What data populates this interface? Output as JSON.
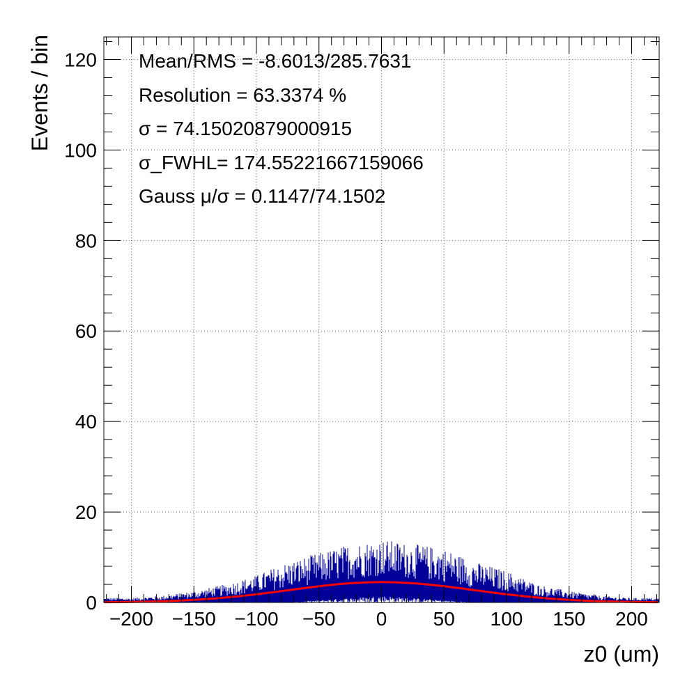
{
  "chart_data": {
    "type": "histogram",
    "xlabel": "z0 (um)",
    "ylabel": "Events / bin",
    "xlim": [
      -222,
      222
    ],
    "ylim": [
      0,
      125
    ],
    "x_ticks": [
      -200,
      -150,
      -100,
      -50,
      0,
      50,
      100,
      150,
      200
    ],
    "x_tick_labels": [
      "−200",
      "−150",
      "−100",
      "−50",
      "0",
      "50",
      "100",
      "150",
      "200"
    ],
    "y_ticks": [
      0,
      20,
      40,
      60,
      80,
      100,
      120
    ],
    "y_tick_labels": [
      "0",
      "20",
      "40",
      "60",
      "80",
      "100",
      "120"
    ],
    "grid": true,
    "stats": [
      "Mean/RMS = -8.6013/285.7631",
      "Resolution = 63.3374 %",
      "σ = 74.15020879000915",
      "σ_FWHL= 174.55221667159066",
      "Gauss  μ/σ = 0.1147/74.1502"
    ],
    "series": [
      {
        "kind": "histogram",
        "color": "#000099",
        "envelope_x": [
          -222,
          -200,
          -175,
          -150,
          -125,
          -100,
          -75,
          -50,
          -25,
          0,
          25,
          50,
          75,
          100,
          125,
          150,
          175,
          200,
          222
        ],
        "envelope_upper": [
          1,
          1,
          1.5,
          2.5,
          4,
          6,
          9,
          11,
          13,
          14,
          13,
          12,
          9,
          7,
          4,
          2.5,
          1.5,
          1,
          1
        ],
        "envelope_lower": [
          0,
          0,
          0,
          0,
          0,
          0,
          0,
          0.5,
          1,
          1.5,
          1,
          0.5,
          0,
          0,
          0,
          0,
          0,
          0,
          0
        ]
      },
      {
        "kind": "gaussian_fit",
        "color": "#ff0000",
        "mu": 0.1147,
        "sigma": 74.1502,
        "amplitude": 4.5
      }
    ]
  }
}
